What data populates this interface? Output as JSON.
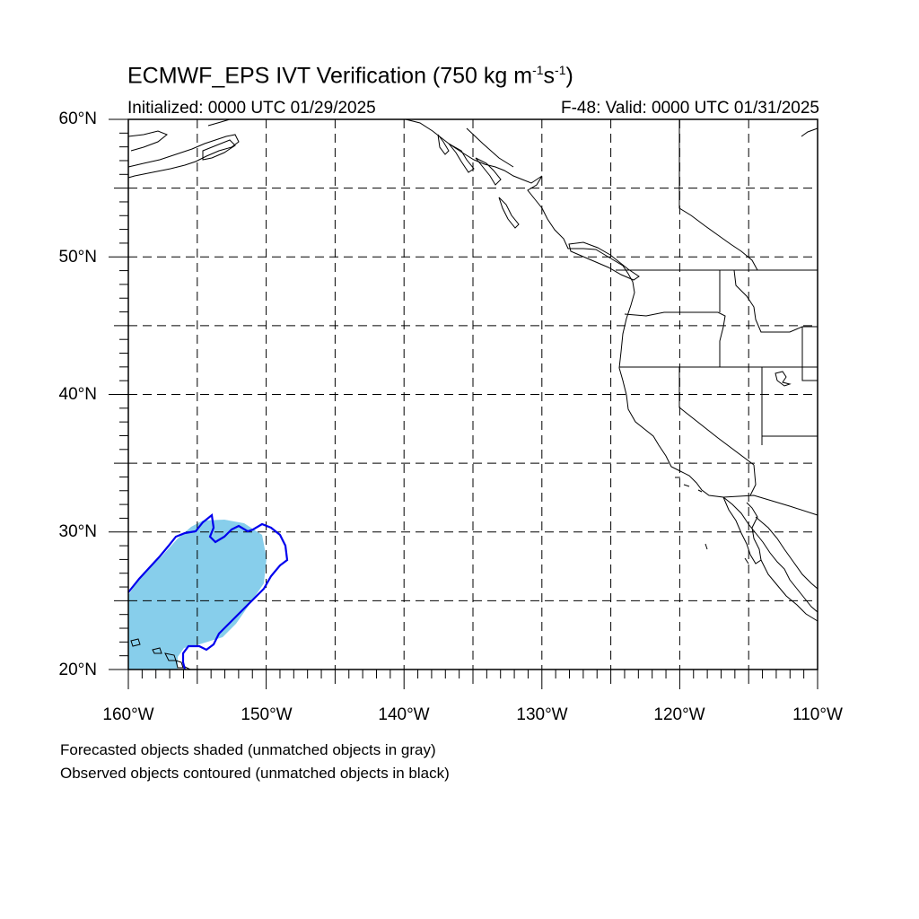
{
  "header": {
    "title_main": "ECMWF_EPS IVT Verification (750 kg m",
    "title_exp1": "-1",
    "title_mid": "s",
    "title_exp2": "-1",
    "title_end": ")",
    "initialized": "Initialized: 0000 UTC 01/29/2025",
    "valid": "F-48: Valid: 0000 UTC 01/31/2025"
  },
  "map": {
    "projection": "cylindrical equidistant",
    "lon_range": [
      -160,
      -110
    ],
    "lat_range": [
      20,
      60
    ],
    "lat_labels": [
      "60°N",
      "50°N",
      "40°N",
      "30°N",
      "20°N"
    ],
    "lon_labels": [
      "160°W",
      "150°W",
      "140°W",
      "130°W",
      "120°W",
      "110°W"
    ],
    "grid_spacing_deg": 5,
    "grid_style": "dashed"
  },
  "colors": {
    "forecast_matched": "#87ceeb",
    "observed_matched": "#0000ee",
    "coastline": "#000000",
    "grid": "#000000"
  },
  "captions": {
    "line1": "Forecasted objects shaded (unmatched objects in gray)",
    "line2": "Observed objects contoured (unmatched objects in black)"
  }
}
